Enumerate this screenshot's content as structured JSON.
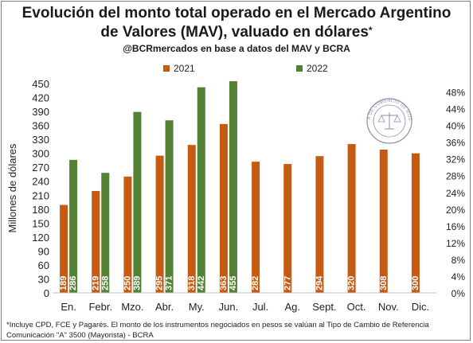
{
  "title_line1": "Evolución del monto total operado en el Mercado Argentino",
  "title_line2": "de Valores (MAV), valuado en dólares",
  "title_asterisk": "*",
  "subtitle": "@BCRmercados en base a datos del MAV y BCRA",
  "footnote_line1": "*Incluye CPD, FCE y Pagarés. El monto de los instrumentos  negociados en pesos se valúan al Tipo de Cambio de Referencia",
  "footnote_line2": "Comunicación \"A\" 3500 (Mayorista) - BCRA",
  "logo_text": "BOLSA DE COMERCIO DE ROSARIO",
  "colors": {
    "s2021": "#c55a11",
    "s2022": "#548235",
    "grid": "#d9d9d9",
    "text": "#222222"
  },
  "chart_data": {
    "type": "bar",
    "categories": [
      "En.",
      "Febr.",
      "Mzo.",
      "Abr.",
      "My.",
      "Jun.",
      "Jul.",
      "Ag.",
      "Sept.",
      "Oct.",
      "Nov.",
      "Dic."
    ],
    "series": [
      {
        "name": "2021",
        "values": [
          189,
          219,
          250,
          295,
          318,
          363,
          282,
          277,
          294,
          320,
          308,
          300
        ]
      },
      {
        "name": "2022",
        "values": [
          286,
          258,
          389,
          371,
          442,
          455,
          null,
          null,
          null,
          null,
          null,
          null
        ]
      }
    ],
    "ylabel": "Millones de dólares",
    "ylim": [
      0,
      450
    ],
    "yticks": [
      0,
      30,
      60,
      90,
      120,
      150,
      180,
      210,
      240,
      270,
      300,
      330,
      360,
      390,
      420,
      450
    ],
    "y2lim": [
      0,
      0.5
    ],
    "y2ticks": [
      "0%",
      "4%",
      "8%",
      "12%",
      "16%",
      "20%",
      "24%",
      "28%",
      "32%",
      "36%",
      "40%",
      "44%",
      "48%"
    ],
    "legend_position": "top",
    "grid": false
  }
}
